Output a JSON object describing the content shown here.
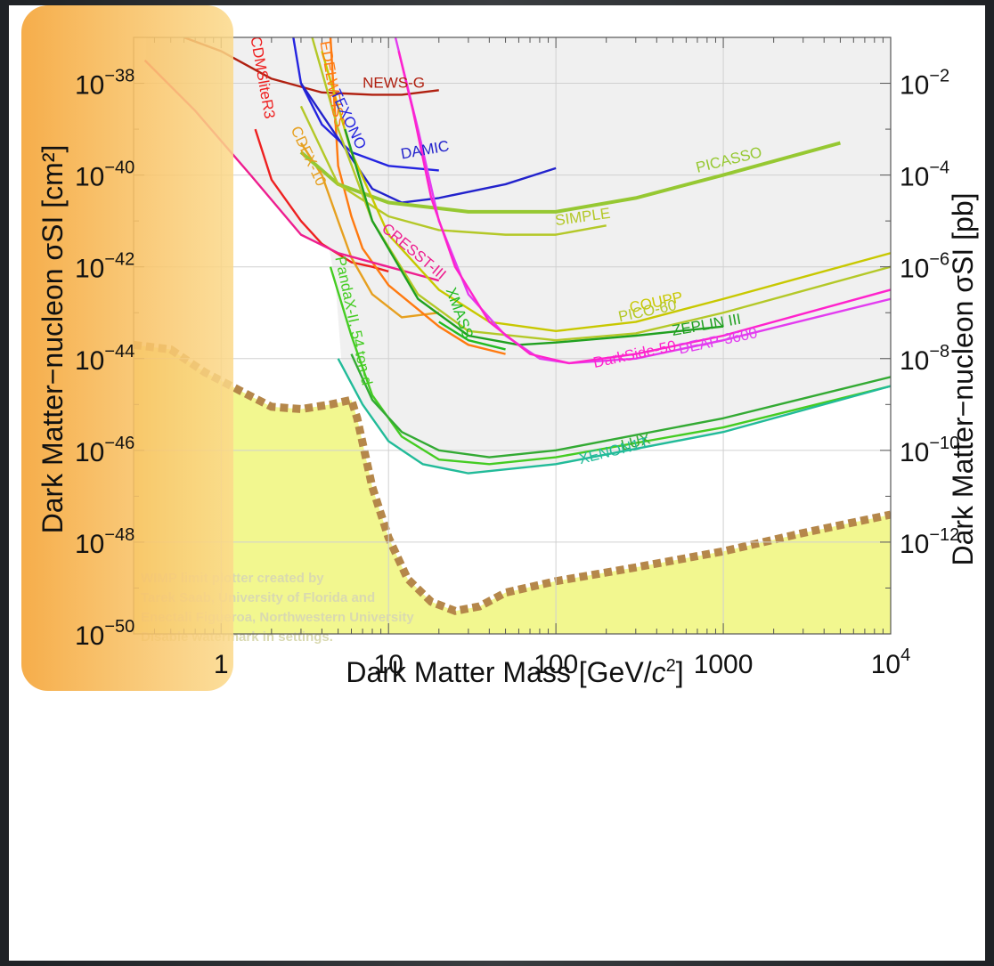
{
  "chart_data": {
    "type": "line",
    "xlabel": "Dark Matter Mass [GeV/c²]",
    "ylabel_left": "Dark Matter−nucleon σSI [cm²]",
    "ylabel_right": "Dark Matter−nucleon σSI [pb]",
    "x_scale": "log",
    "y_scale": "log",
    "xlim": [
      0.3,
      10000
    ],
    "ylim": [
      1e-50,
      1e-37
    ],
    "x_ticks": [
      {
        "value": 1,
        "label": "1"
      },
      {
        "value": 10,
        "label": "10"
      },
      {
        "value": 100,
        "label": "100"
      },
      {
        "value": 1000,
        "label": "1000"
      },
      {
        "value": 10000,
        "label": "10",
        "sup": "4"
      }
    ],
    "y_ticks_left": [
      {
        "value": 1e-38,
        "label": "10",
        "sup": "−38"
      },
      {
        "value": 1e-40,
        "label": "10",
        "sup": "−40"
      },
      {
        "value": 1e-42,
        "label": "10",
        "sup": "−42"
      },
      {
        "value": 1e-44,
        "label": "10",
        "sup": "−44"
      },
      {
        "value": 1e-46,
        "label": "10",
        "sup": "−46"
      },
      {
        "value": 1e-48,
        "label": "10",
        "sup": "−48"
      },
      {
        "value": 1e-50,
        "label": "10",
        "sup": "−50"
      }
    ],
    "y_ticks_right": [
      {
        "value": 1e-38,
        "label": "10",
        "sup": "−2"
      },
      {
        "value": 1e-40,
        "label": "10",
        "sup": "−4"
      },
      {
        "value": 1e-42,
        "label": "10",
        "sup": "−6"
      },
      {
        "value": 1e-44,
        "label": "10",
        "sup": "−8"
      },
      {
        "value": 1e-46,
        "label": "10",
        "sup": "−10"
      },
      {
        "value": 1e-48,
        "label": "10",
        "sup": "−12"
      }
    ],
    "excluded_region_color": "#f0f0f0",
    "neutrino_floor": {
      "color_fill": "#f2f78f",
      "color_line": "#b5874a",
      "points": [
        [
          0.3,
          -43.7
        ],
        [
          0.5,
          -43.8
        ],
        [
          0.8,
          -44.3
        ],
        [
          1.3,
          -44.7
        ],
        [
          2,
          -45.05
        ],
        [
          3,
          -45.1
        ],
        [
          4.5,
          -45.0
        ],
        [
          6,
          -44.9
        ],
        [
          6.5,
          -45.3
        ],
        [
          8,
          -46.8
        ],
        [
          10,
          -47.9
        ],
        [
          13,
          -48.8
        ],
        [
          18,
          -49.3
        ],
        [
          25,
          -49.5
        ],
        [
          35,
          -49.4
        ],
        [
          50,
          -49.1
        ],
        [
          100,
          -48.85
        ],
        [
          300,
          -48.55
        ],
        [
          1000,
          -48.2
        ],
        [
          3000,
          -47.8
        ],
        [
          10000,
          -47.4
        ]
      ]
    },
    "series": [
      {
        "name": "CDMSliteR3",
        "color": "#ee2020",
        "points": [
          [
            1.6,
            -39.0
          ],
          [
            2,
            -40.1
          ],
          [
            3,
            -41.0
          ],
          [
            4,
            -41.5
          ],
          [
            6,
            -41.9
          ],
          [
            8,
            -42.0
          ],
          [
            10,
            -42.1
          ]
        ]
      },
      {
        "name": "NEWS-G",
        "color": "#b02010",
        "points": [
          [
            0.6,
            -37.0
          ],
          [
            1,
            -37.3
          ],
          [
            2,
            -37.9
          ],
          [
            4,
            -38.2
          ],
          [
            8,
            -38.25
          ],
          [
            12,
            -38.25
          ],
          [
            20,
            -38.15
          ]
        ]
      },
      {
        "name": "CDEX-10",
        "color": "#e6a020",
        "points": [
          [
            3,
            -39.3
          ],
          [
            4,
            -40.0
          ],
          [
            5,
            -41.0
          ],
          [
            6,
            -41.8
          ],
          [
            8,
            -42.6
          ],
          [
            12,
            -43.1
          ],
          [
            20,
            -43.0
          ]
        ]
      },
      {
        "name": "EDELWEISS",
        "color": "#ff7a10",
        "points": [
          [
            4.5,
            -37.0
          ],
          [
            5,
            -39.8
          ],
          [
            6,
            -40.9
          ],
          [
            7,
            -41.6
          ],
          [
            10,
            -42.4
          ],
          [
            20,
            -43.3
          ],
          [
            30,
            -43.7
          ],
          [
            50,
            -43.9
          ]
        ]
      },
      {
        "name": "TEXONO",
        "color": "#2424e0",
        "points": [
          [
            2.7,
            -37.0
          ],
          [
            3,
            -38.0
          ],
          [
            4,
            -38.9
          ],
          [
            6,
            -39.5
          ],
          [
            10,
            -39.8
          ],
          [
            20,
            -39.9
          ]
        ]
      },
      {
        "name": "DAMIC",
        "color": "#2222cc",
        "points": [
          [
            3,
            -38.0
          ],
          [
            5,
            -39.2
          ],
          [
            8,
            -40.3
          ],
          [
            12,
            -40.6
          ],
          [
            20,
            -40.5
          ],
          [
            50,
            -40.2
          ],
          [
            100,
            -39.85
          ]
        ]
      },
      {
        "name": "CRESST-III",
        "color": "#ee1e8f",
        "points": [
          [
            0.35,
            -37.5
          ],
          [
            0.7,
            -38.6
          ],
          [
            1.5,
            -40.0
          ],
          [
            3,
            -41.3
          ],
          [
            5,
            -41.7
          ],
          [
            10,
            -42.0
          ],
          [
            20,
            -42.3
          ]
        ]
      },
      {
        "name": "PICASSO",
        "color": "#96c832",
        "points": [
          [
            3,
            -39.5
          ],
          [
            5,
            -40.2
          ],
          [
            10,
            -40.6
          ],
          [
            30,
            -40.8
          ],
          [
            100,
            -40.8
          ],
          [
            300,
            -40.5
          ],
          [
            1000,
            -40.0
          ],
          [
            5000,
            -39.3
          ]
        ]
      },
      {
        "name": "SIMPLE",
        "color": "#b4c828",
        "points": [
          [
            3,
            -38.5
          ],
          [
            5,
            -40.2
          ],
          [
            10,
            -40.9
          ],
          [
            20,
            -41.2
          ],
          [
            50,
            -41.3
          ],
          [
            100,
            -41.3
          ],
          [
            200,
            -41.1
          ]
        ]
      },
      {
        "name": "COUPP",
        "color": "#c8c800",
        "points": [
          [
            4,
            -37.3
          ],
          [
            6,
            -39.5
          ],
          [
            10,
            -41.3
          ],
          [
            20,
            -42.5
          ],
          [
            40,
            -43.2
          ],
          [
            100,
            -43.4
          ],
          [
            300,
            -43.2
          ],
          [
            1000,
            -42.7
          ],
          [
            10000,
            -41.7
          ]
        ]
      },
      {
        "name": "PICO-60",
        "color": "#b4c828",
        "points": [
          [
            3.5,
            -37.0
          ],
          [
            5,
            -39.0
          ],
          [
            8,
            -41.0
          ],
          [
            15,
            -42.6
          ],
          [
            30,
            -43.4
          ],
          [
            100,
            -43.6
          ],
          [
            300,
            -43.45
          ],
          [
            1000,
            -43.0
          ],
          [
            10000,
            -42.0
          ]
        ]
      },
      {
        "name": "ZEPLIN III",
        "color": "#20a020",
        "points": [
          [
            5.5,
            -39.0
          ],
          [
            8,
            -41.0
          ],
          [
            15,
            -42.7
          ],
          [
            30,
            -43.5
          ],
          [
            60,
            -43.7
          ],
          [
            100,
            -43.65
          ],
          [
            300,
            -43.5
          ],
          [
            1000,
            -43.3
          ]
        ]
      },
      {
        "name": "XMASS",
        "color": "#22bb22",
        "points": [
          [
            20,
            -43.2
          ],
          [
            30,
            -43.6
          ],
          [
            50,
            -43.8
          ]
        ]
      },
      {
        "name": "DEAP-3600",
        "color": "#e23cf0",
        "points": [
          [
            11,
            -37.0
          ],
          [
            15,
            -39.0
          ],
          [
            20,
            -41.0
          ],
          [
            30,
            -42.6
          ],
          [
            50,
            -43.5
          ],
          [
            80,
            -44.0
          ],
          [
            120,
            -44.1
          ],
          [
            300,
            -44.0
          ],
          [
            1000,
            -43.6
          ],
          [
            10000,
            -42.7
          ]
        ]
      },
      {
        "name": "DarkSide-50",
        "color": "#ff22cc",
        "points": [
          [
            11.5,
            -37.3
          ],
          [
            14,
            -38.6
          ],
          [
            18,
            -40.5
          ],
          [
            25,
            -42.0
          ],
          [
            40,
            -43.2
          ],
          [
            70,
            -43.9
          ],
          [
            120,
            -44.1
          ],
          [
            300,
            -43.9
          ],
          [
            1000,
            -43.5
          ],
          [
            10000,
            -42.5
          ]
        ]
      },
      {
        "name": "PandaX-II, 54 ton-d",
        "color": "#44cc22",
        "points": [
          [
            4.5,
            -42.0
          ],
          [
            6,
            -43.5
          ],
          [
            8,
            -44.8
          ],
          [
            12,
            -45.7
          ],
          [
            20,
            -46.2
          ],
          [
            40,
            -46.3
          ],
          [
            100,
            -46.15
          ],
          [
            1000,
            -45.5
          ],
          [
            10000,
            -44.6
          ]
        ]
      },
      {
        "name": "LUX",
        "color": "#33aa33",
        "points": [
          [
            6,
            -43.9
          ],
          [
            8,
            -44.9
          ],
          [
            12,
            -45.6
          ],
          [
            20,
            -46.0
          ],
          [
            40,
            -46.15
          ],
          [
            100,
            -46.0
          ],
          [
            1000,
            -45.3
          ],
          [
            10000,
            -44.4
          ]
        ]
      },
      {
        "name": "XENON1T",
        "color": "#22bb99",
        "points": [
          [
            5,
            -44.0
          ],
          [
            7,
            -45.0
          ],
          [
            10,
            -45.8
          ],
          [
            16,
            -46.3
          ],
          [
            30,
            -46.5
          ],
          [
            100,
            -46.3
          ],
          [
            1000,
            -45.6
          ],
          [
            10000,
            -44.6
          ]
        ]
      }
    ],
    "labels": [
      {
        "text": "NEWS-G",
        "x": 7,
        "y": -38.1,
        "rot": 0,
        "color": "#b02010"
      },
      {
        "text": "DAMIC",
        "x": 12,
        "y": -39.65,
        "rot": -10,
        "color": "#2222cc"
      },
      {
        "text": "PICASSO",
        "x": 700,
        "y": -39.95,
        "rot": -14,
        "color": "#96c832"
      },
      {
        "text": "SIMPLE",
        "x": 100,
        "y": -41.1,
        "rot": -8,
        "color": "#b4c828"
      },
      {
        "text": "COUPP",
        "x": 280,
        "y": -43.0,
        "rot": -12,
        "color": "#c8c800"
      },
      {
        "text": "PICO-60",
        "x": 240,
        "y": -43.2,
        "rot": -12,
        "color": "#b4c828"
      },
      {
        "text": "ZEPLIN III",
        "x": 500,
        "y": -43.5,
        "rot": -10,
        "color": "#20a020"
      },
      {
        "text": "DEAP-3600",
        "x": 550,
        "y": -43.9,
        "rot": -12,
        "color": "#e23cf0"
      },
      {
        "text": "DarkSide-50",
        "x": 170,
        "y": -44.2,
        "rot": -12,
        "color": "#ff22cc"
      },
      {
        "text": "LUX",
        "x": 250,
        "y": -46.0,
        "rot": -14,
        "color": "#33aa33"
      },
      {
        "text": "XENON1T",
        "x": 140,
        "y": -46.3,
        "rot": -14,
        "color": "#22bb99"
      },
      {
        "text": "CDMSliteR3",
        "x": 1.5,
        "y": -37.0,
        "rot": 80,
        "color": "#ee2020"
      },
      {
        "text": "EDELWEISS",
        "x": 3.9,
        "y": -37.1,
        "rot": 80,
        "color": "#ff7a10"
      },
      {
        "text": "TEXONO",
        "x": 4.5,
        "y": -38.2,
        "rot": 65,
        "color": "#2424e0"
      },
      {
        "text": "CDEX-10",
        "x": 2.6,
        "y": -39.0,
        "rot": 65,
        "color": "#e6a020"
      },
      {
        "text": "CRESST-III",
        "x": 9,
        "y": -41.2,
        "rot": 40,
        "color": "#ee1e8f"
      },
      {
        "text": "XMASS",
        "x": 22,
        "y": -42.5,
        "rot": 70,
        "color": "#22bb22"
      },
      {
        "text": "PandaX-II, 54 ton-d",
        "x": 4.8,
        "y": -41.8,
        "rot": 78,
        "color": "#44cc22"
      }
    ],
    "watermark": [
      "WIMP limit plotter created by",
      "Tarek Saab, University of Florida and",
      "Enectali Figueroa, Northwestern University",
      "Disable watermark in settings."
    ]
  }
}
